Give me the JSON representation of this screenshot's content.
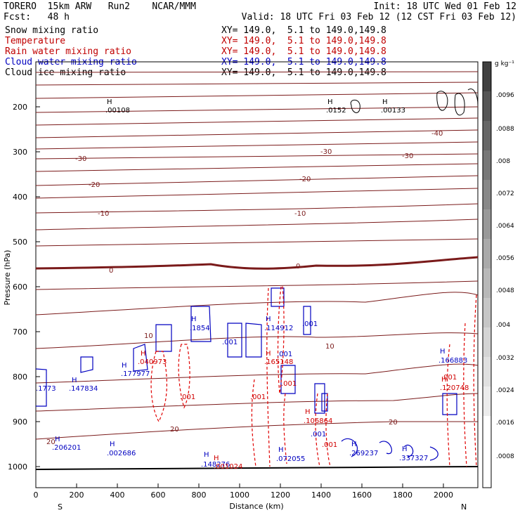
{
  "header": {
    "line1_left": "TORERO  15km ARW   Run2    NCAR/MMM",
    "line1_right": "Init: 18 UTC Wed 01 Feb 12",
    "line2_left": "Fcst:   48 h",
    "line2_right": "Valid: 18 UTC Fri 03 Feb 12 (12 CST Fri 03 Feb 12)"
  },
  "fields": [
    {
      "name": "Snow mixing ratio",
      "xy": "XY= 149.0,  5.1 to 149.0,149.8",
      "color": "#000000"
    },
    {
      "name": "Temperature",
      "xy": "XY= 149.0,  5.1 to 149.0,149.8",
      "color": "#c00000"
    },
    {
      "name": "Rain water mixing ratio",
      "xy": "XY= 149.0,  5.1 to 149.0,149.8",
      "color": "#c00000"
    },
    {
      "name": "Cloud water mixing ratio",
      "xy": "XY= 149.0,  5.1 to 149.0,149.8",
      "color": "#0000c0"
    },
    {
      "name": "Cloud ice mixing ratio",
      "xy": "XY= 149.0,  5.1 to 149.0,149.8",
      "color": "#000000"
    }
  ],
  "axes": {
    "ylabel": "Pressure (hPa)",
    "xlabel": "Distance (km)",
    "yticks": [
      "200",
      "300",
      "400",
      "500",
      "600",
      "700",
      "800",
      "900",
      "1000"
    ],
    "xticks": [
      "0",
      "200",
      "400",
      "600",
      "800",
      "1000",
      "1200",
      "1400",
      "1600",
      "1800",
      "2000"
    ],
    "left_end": "S",
    "right_end": "N"
  },
  "colorbar": {
    "unit": "g kg⁻¹",
    "labels": [
      ".0096",
      ".0088",
      ".008",
      ".0072",
      ".0064",
      ".0056",
      ".0048",
      ".004",
      ".0032",
      ".0024",
      ".0016",
      ".0008"
    ]
  },
  "temperature_labels": [
    "-40",
    "-30",
    "-30",
    "-30",
    "-20",
    "-20",
    "-10",
    "-10",
    "0",
    "0",
    "10",
    "10",
    "20",
    "20",
    "20"
  ],
  "temp_label_list": [
    {
      "t": "-40"
    },
    {
      "t": "-30"
    },
    {
      "t": "-30"
    },
    {
      "t": "-30"
    },
    {
      "t": "-20"
    },
    {
      "t": "-20"
    },
    {
      "t": "-10"
    },
    {
      "t": "-10"
    },
    {
      "t": "0"
    },
    {
      "t": "0"
    },
    {
      "t": "10"
    },
    {
      "t": "10"
    },
    {
      "t": "20"
    },
    {
      "t": "20"
    },
    {
      "t": "20"
    }
  ],
  "cloud_water_labels": [
    ".1854",
    ".001",
    ".114912",
    ".001",
    ".001",
    ".177977",
    ".1773",
    ".147834",
    ".206201",
    ".002686",
    ".148276",
    ".072055",
    ".001",
    ".269237",
    ".337327",
    ".166883"
  ],
  "rain_water_labels": [
    ".040973",
    ".001",
    ".001",
    ".165148",
    ".001",
    ".106864",
    ".001",
    ".001024",
    ".120748",
    ".001"
  ],
  "snow_labels": [
    ".00108",
    ".0152",
    ".00133"
  ],
  "high_marker": "H"
}
